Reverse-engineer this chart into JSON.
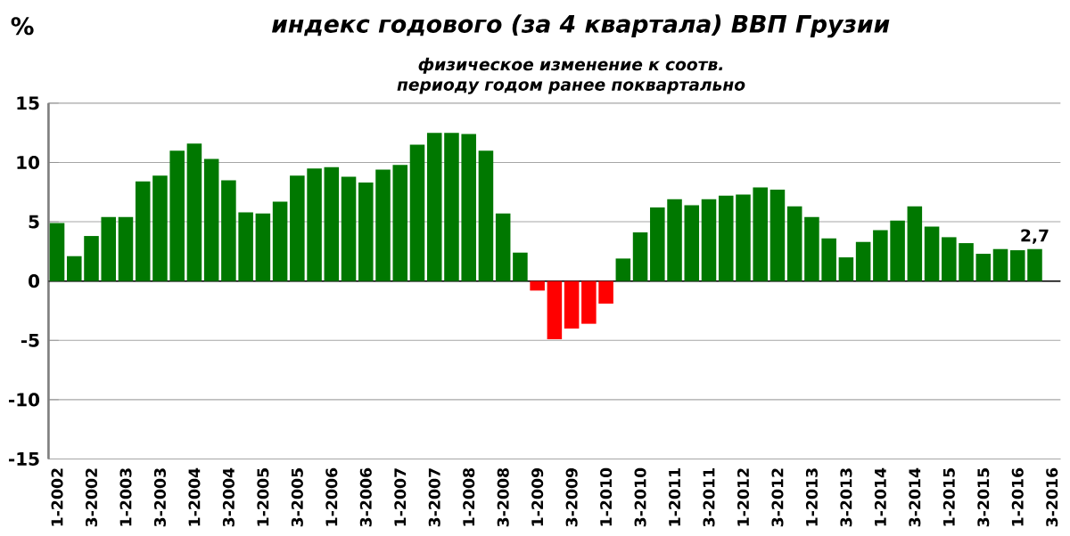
{
  "chart_data": {
    "type": "bar",
    "title": "индекс годового (за 4 квартала) ВВП Грузии",
    "subtitle": "физическое изменение к соотв. периоду годом ранее поквартально",
    "ylabel": "%",
    "categories": [
      "1-2002",
      null,
      "3-2002",
      null,
      "1-2003",
      null,
      "3-2003",
      null,
      "1-2004",
      null,
      "3-2004",
      null,
      "1-2005",
      null,
      "3-2005",
      null,
      "1-2006",
      null,
      "3-2006",
      null,
      "1-2007",
      null,
      "3-2007",
      null,
      "1-2008",
      null,
      "3-2008",
      null,
      "1-2009",
      null,
      "3-2009",
      null,
      "1-2010",
      null,
      "3-2010",
      null,
      "1-2011",
      null,
      "3-2011",
      null,
      "1-2012",
      null,
      "3-2012",
      null,
      "1-2013",
      null,
      "3-2013",
      null,
      "1-2014",
      null,
      "3-2014",
      null,
      "1-2015",
      null,
      "3-2015",
      null,
      "1-2016",
      null,
      "3-2016"
    ],
    "values": [
      4.9,
      2.1,
      3.8,
      5.4,
      5.4,
      8.4,
      8.9,
      11.0,
      11.6,
      10.3,
      8.5,
      5.8,
      5.7,
      6.7,
      8.9,
      9.5,
      9.6,
      8.8,
      8.3,
      9.4,
      9.8,
      11.5,
      12.5,
      12.5,
      12.4,
      11.0,
      5.7,
      2.4,
      -0.8,
      -4.9,
      -4.0,
      -3.6,
      -1.9,
      1.9,
      4.1,
      6.2,
      6.9,
      6.4,
      6.9,
      7.2,
      7.3,
      7.9,
      7.7,
      6.3,
      5.4,
      3.6,
      2.0,
      3.3,
      4.3,
      5.1,
      6.3,
      4.6,
      3.7,
      3.2,
      2.3,
      2.7,
      2.6,
      2.7,
      null
    ],
    "colors": [
      "#007800",
      "#007800",
      "#007800",
      "#007800",
      "#007800",
      "#007800",
      "#007800",
      "#007800",
      "#007800",
      "#007800",
      "#007800",
      "#007800",
      "#007800",
      "#007800",
      "#007800",
      "#007800",
      "#007800",
      "#007800",
      "#007800",
      "#007800",
      "#007800",
      "#007800",
      "#007800",
      "#007800",
      "#007800",
      "#007800",
      "#007800",
      "#007800",
      "#ff0000",
      "#ff0000",
      "#ff0000",
      "#ff0000",
      "#ff0000",
      "#007800",
      "#007800",
      "#007800",
      "#007800",
      "#007800",
      "#007800",
      "#007800",
      "#007800",
      "#007800",
      "#007800",
      "#007800",
      "#007800",
      "#007800",
      "#007800",
      "#007800",
      "#007800",
      "#007800",
      "#007800",
      "#007800",
      "#007800",
      "#007800",
      "#007800",
      "#007800",
      "#007800",
      "#007800",
      "#007800"
    ],
    "value_labels": [
      null,
      null,
      null,
      null,
      null,
      null,
      null,
      null,
      null,
      null,
      null,
      null,
      null,
      null,
      null,
      null,
      null,
      null,
      null,
      null,
      null,
      null,
      null,
      null,
      null,
      null,
      null,
      null,
      null,
      null,
      null,
      null,
      null,
      null,
      null,
      null,
      null,
      null,
      null,
      null,
      null,
      null,
      null,
      null,
      null,
      null,
      null,
      null,
      null,
      null,
      null,
      null,
      null,
      null,
      null,
      null,
      null,
      "2,7",
      null
    ],
    "ylim": [
      -15,
      15
    ],
    "yticks": [
      -15,
      -10,
      -5,
      0,
      5,
      10,
      15
    ],
    "grid": "y"
  }
}
